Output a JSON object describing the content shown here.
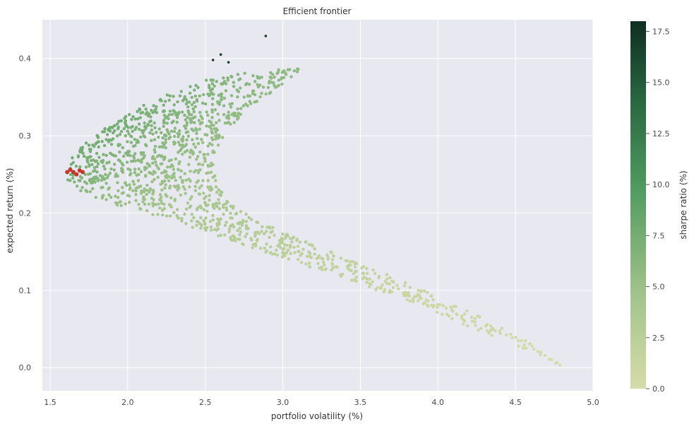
{
  "chart_data": {
    "type": "scatter",
    "title": "Efficient frontier",
    "xlabel": "portfolio volatility (%)",
    "ylabel": "expected return (%)",
    "xlim": [
      1.45,
      5.0
    ],
    "ylim": [
      -0.03,
      0.45
    ],
    "xticks": [
      "1.5",
      "2.0",
      "2.5",
      "3.0",
      "3.5",
      "4.0",
      "4.5",
      "5.0"
    ],
    "yticks": [
      "0.0",
      "0.1",
      "0.2",
      "0.3",
      "0.4"
    ],
    "grid": true,
    "colorbar": {
      "label": "sharpe ratio (%)",
      "range": [
        0,
        18
      ],
      "ticks": [
        "0.0",
        "2.5",
        "5.0",
        "7.5",
        "10.0",
        "12.5",
        "15.0",
        "17.5"
      ],
      "colormap_low": "#d6dcaa",
      "colormap_mid": "#3f8a52",
      "colormap_high": "#0f2e22"
    },
    "frontier": {
      "outer_boundary": [
        [
          4.85,
          -0.005
        ],
        [
          4.6,
          0.02
        ],
        [
          4.3,
          0.045
        ],
        [
          4.0,
          0.07
        ],
        [
          3.7,
          0.093
        ],
        [
          3.4,
          0.115
        ],
        [
          3.1,
          0.135
        ],
        [
          2.8,
          0.155
        ],
        [
          2.5,
          0.175
        ],
        [
          2.2,
          0.195
        ],
        [
          1.9,
          0.212
        ],
        [
          1.72,
          0.225
        ],
        [
          1.62,
          0.24
        ],
        [
          1.6,
          0.25
        ],
        [
          1.63,
          0.27
        ],
        [
          1.72,
          0.29
        ],
        [
          1.85,
          0.31
        ],
        [
          2.0,
          0.33
        ],
        [
          2.2,
          0.35
        ],
        [
          2.45,
          0.37
        ],
        [
          2.7,
          0.38
        ],
        [
          2.95,
          0.385
        ],
        [
          3.15,
          0.39
        ]
      ],
      "inner_boundary": [
        [
          3.15,
          0.39
        ],
        [
          2.95,
          0.36
        ],
        [
          2.75,
          0.33
        ],
        [
          2.62,
          0.3
        ],
        [
          2.55,
          0.27
        ],
        [
          2.57,
          0.24
        ],
        [
          2.68,
          0.21
        ],
        [
          2.9,
          0.185
        ],
        [
          3.2,
          0.16
        ],
        [
          3.5,
          0.135
        ],
        [
          3.8,
          0.11
        ],
        [
          4.1,
          0.083
        ],
        [
          4.4,
          0.053
        ],
        [
          4.65,
          0.025
        ],
        [
          4.85,
          -0.005
        ]
      ],
      "min_volatility_marker": {
        "x": 1.65,
        "y": 0.253,
        "color": "#c0392b"
      },
      "outlier_points": [
        [
          2.89,
          0.429
        ],
        [
          2.6,
          0.405
        ],
        [
          2.55,
          0.398
        ],
        [
          2.65,
          0.395
        ]
      ]
    }
  }
}
